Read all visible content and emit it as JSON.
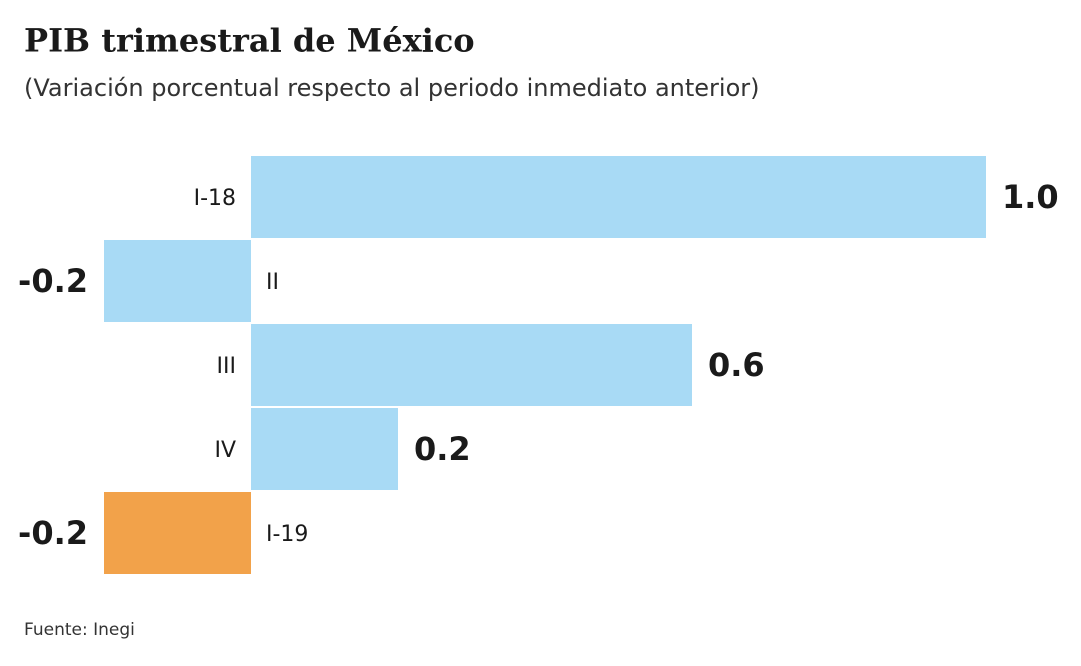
{
  "chart_data": {
    "type": "bar",
    "orientation": "horizontal",
    "title": "PIB trimestral de México",
    "subtitle": "(Variación porcentual respecto al periodo inmediato anterior)",
    "source": "Fuente: Inegi",
    "categories": [
      "I-18",
      "II",
      "III",
      "IV",
      "I-19"
    ],
    "values": [
      1.0,
      -0.2,
      0.6,
      0.2,
      -0.2
    ],
    "value_labels": [
      "1.0",
      "-0.2",
      "0.6",
      "0.2",
      "-0.2"
    ],
    "colors": [
      "#a8daf5",
      "#a8daf5",
      "#a8daf5",
      "#a8daf5",
      "#f2a24a"
    ]
  }
}
